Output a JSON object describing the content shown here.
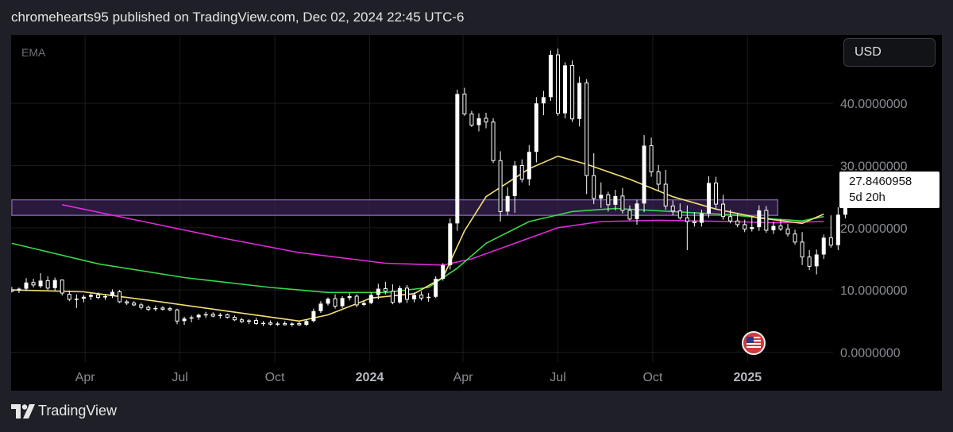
{
  "header": {
    "attribution": "chromehearts95 published on TradingView.com, Dec 02, 2024 22:45 UTC-6"
  },
  "toolbar": {
    "indicator_label": "EMA",
    "currency_label": "USD"
  },
  "price_label": {
    "price": "27.8460958",
    "countdown": "5d 20h"
  },
  "footer": {
    "brand": "TradingView"
  },
  "colors": {
    "background": "#000000",
    "frame": "#1f2027",
    "candle": "#ffffff",
    "ema_short": "#f5df78",
    "ema_mid": "#3ad84a",
    "ema_long": "#e22adc",
    "zone_fill": "#3a2456",
    "zone_stroke": "#7a5aa8",
    "grid": "#1a1b20",
    "axis_text": "#8a8c94"
  },
  "icons": {
    "flag": "us-flag-icon",
    "logo": "tradingview-logo-icon"
  },
  "chart_data": {
    "type": "candlestick",
    "interval": "weekly",
    "y_ticks": [
      0,
      10,
      20,
      30,
      40
    ],
    "y_tick_labels": [
      "0.0000000",
      "10.0000000",
      "20.0000000",
      "30.0000000",
      "40.0000000"
    ],
    "ylim": [
      -1.6,
      51.0
    ],
    "x_ticks": [
      "Apr",
      "Jul",
      "Oct",
      "2024",
      "Apr",
      "Jul",
      "Oct",
      "2025"
    ],
    "x_tick_index": [
      10.2,
      23.4,
      36.6,
      49.8,
      62.8,
      76.0,
      89.2,
      102.4
    ],
    "x_bold_ticks": [
      "2024",
      "2025"
    ],
    "xlim": [
      -0.1,
      114.3
    ],
    "zone": {
      "y_from": 22.0,
      "y_to": 24.5,
      "x_from": 0,
      "x_to": 106.6
    },
    "candles": [
      [
        10.0,
        10.5,
        9.6,
        9.9
      ],
      [
        9.9,
        10.4,
        9.5,
        10.2
      ],
      [
        10.2,
        11.9,
        9.8,
        11.2
      ],
      [
        11.2,
        11.8,
        10.4,
        10.8
      ],
      [
        10.6,
        12.7,
        10.3,
        11.5
      ],
      [
        11.5,
        12.2,
        10.0,
        10.3
      ],
      [
        10.3,
        12.0,
        9.9,
        11.6
      ],
      [
        11.6,
        11.7,
        9.1,
        9.5
      ],
      [
        9.3,
        9.9,
        8.2,
        8.5
      ],
      [
        8.5,
        9.3,
        7.1,
        8.6
      ],
      [
        8.6,
        9.2,
        8.0,
        8.9
      ],
      [
        8.9,
        9.5,
        8.4,
        9.2
      ],
      [
        9.2,
        9.6,
        8.5,
        8.8
      ],
      [
        8.8,
        9.3,
        8.4,
        9.0
      ],
      [
        9.0,
        10.1,
        8.7,
        9.7
      ],
      [
        9.7,
        10.0,
        7.9,
        8.1
      ],
      [
        8.1,
        8.4,
        7.6,
        7.9
      ],
      [
        7.9,
        8.2,
        7.4,
        7.6
      ],
      [
        7.6,
        7.9,
        6.9,
        7.2
      ],
      [
        7.2,
        7.5,
        6.6,
        6.9
      ],
      [
        6.9,
        7.5,
        6.6,
        7.1
      ],
      [
        7.1,
        7.4,
        6.7,
        7.0
      ],
      [
        7.0,
        7.3,
        6.6,
        6.8
      ],
      [
        6.8,
        7.0,
        4.5,
        5.0
      ],
      [
        5.0,
        5.7,
        4.4,
        5.4
      ],
      [
        5.4,
        5.9,
        4.8,
        5.6
      ],
      [
        5.6,
        6.2,
        5.2,
        6.0
      ],
      [
        6.0,
        6.5,
        5.5,
        6.1
      ],
      [
        6.1,
        6.4,
        5.6,
        5.8
      ],
      [
        5.8,
        6.3,
        5.4,
        6.0
      ],
      [
        6.0,
        6.2,
        5.4,
        5.6
      ],
      [
        5.6,
        5.9,
        5.0,
        5.2
      ],
      [
        5.2,
        5.5,
        4.7,
        4.9
      ],
      [
        4.9,
        5.3,
        4.5,
        5.1
      ],
      [
        5.1,
        5.5,
        4.4,
        4.6
      ],
      [
        4.6,
        5.0,
        4.2,
        4.7
      ],
      [
        4.7,
        5.1,
        4.3,
        4.5
      ],
      [
        4.5,
        4.9,
        4.2,
        4.6
      ],
      [
        4.6,
        5.0,
        4.3,
        4.4
      ],
      [
        4.4,
        4.8,
        4.1,
        4.6
      ],
      [
        4.6,
        5.0,
        4.2,
        4.4
      ],
      [
        4.4,
        5.2,
        4.2,
        5.0
      ],
      [
        5.0,
        7.0,
        4.8,
        6.6
      ],
      [
        6.6,
        8.2,
        6.3,
        7.8
      ],
      [
        7.8,
        8.8,
        7.5,
        8.6
      ],
      [
        8.6,
        9.3,
        7.0,
        7.4
      ],
      [
        7.4,
        9.0,
        7.1,
        8.7
      ],
      [
        8.7,
        9.5,
        8.3,
        9.0
      ],
      [
        9.0,
        9.3,
        7.2,
        7.6
      ],
      [
        7.6,
        8.2,
        7.4,
        7.9
      ],
      [
        7.9,
        9.6,
        7.7,
        9.2
      ],
      [
        9.2,
        11.0,
        8.5,
        10.2
      ],
      [
        10.2,
        11.3,
        9.3,
        9.8
      ],
      [
        9.8,
        10.9,
        7.7,
        8.0
      ],
      [
        8.0,
        10.7,
        7.8,
        10.3
      ],
      [
        10.3,
        10.8,
        7.9,
        8.5
      ],
      [
        8.5,
        9.6,
        8.0,
        9.2
      ],
      [
        9.2,
        9.8,
        8.3,
        8.7
      ],
      [
        8.7,
        9.5,
        8.1,
        8.9
      ],
      [
        8.9,
        12.2,
        8.7,
        11.8
      ],
      [
        11.8,
        14.3,
        11.5,
        14.0
      ],
      [
        14.0,
        21.5,
        13.3,
        20.7
      ],
      [
        20.7,
        42.2,
        19.5,
        41.5
      ],
      [
        41.5,
        42.5,
        38.0,
        38.3
      ],
      [
        38.3,
        38.8,
        36.2,
        36.5
      ],
      [
        36.5,
        38.4,
        35.5,
        37.6
      ],
      [
        37.6,
        38.5,
        36.0,
        37.0
      ],
      [
        37.0,
        37.6,
        30.4,
        30.8
      ],
      [
        30.8,
        32.3,
        21.0,
        22.6
      ],
      [
        22.6,
        26.5,
        22.0,
        25.1
      ],
      [
        25.1,
        30.7,
        22.4,
        30.0
      ],
      [
        30.0,
        31.0,
        27.3,
        27.8
      ],
      [
        27.8,
        33.3,
        26.8,
        32.2
      ],
      [
        32.2,
        41.0,
        30.5,
        40.0
      ],
      [
        40.0,
        42.0,
        38.1,
        41.0
      ],
      [
        41.0,
        48.5,
        40.4,
        47.8
      ],
      [
        47.8,
        48.8,
        38.0,
        38.4
      ],
      [
        38.4,
        46.6,
        37.6,
        46.1
      ],
      [
        46.1,
        46.9,
        37.0,
        37.5
      ],
      [
        37.5,
        44.3,
        36.3,
        43.3
      ],
      [
        43.3,
        43.9,
        25.4,
        28.4
      ],
      [
        28.4,
        32.0,
        23.8,
        24.7
      ],
      [
        24.7,
        27.3,
        23.2,
        25.3
      ],
      [
        25.3,
        25.8,
        22.6,
        23.7
      ],
      [
        23.7,
        26.1,
        22.8,
        25.1
      ],
      [
        25.1,
        26.4,
        22.3,
        22.8
      ],
      [
        22.8,
        23.6,
        21.2,
        21.4
      ],
      [
        21.4,
        24.5,
        20.5,
        23.9
      ],
      [
        23.9,
        34.9,
        22.5,
        33.2
      ],
      [
        33.2,
        34.5,
        28.2,
        29.0
      ],
      [
        29.0,
        30.1,
        26.0,
        27.0
      ],
      [
        27.0,
        29.3,
        22.9,
        23.5
      ],
      [
        23.5,
        24.4,
        22.0,
        22.7
      ],
      [
        22.7,
        23.9,
        21.3,
        21.6
      ],
      [
        21.6,
        23.6,
        16.4,
        21.0
      ],
      [
        21.0,
        22.5,
        20.2,
        20.8
      ],
      [
        20.8,
        22.9,
        20.2,
        22.3
      ],
      [
        22.3,
        28.3,
        21.6,
        27.2
      ],
      [
        27.2,
        28.2,
        23.1,
        23.8
      ],
      [
        23.8,
        25.3,
        21.3,
        21.8
      ],
      [
        21.8,
        22.9,
        20.7,
        21.1
      ],
      [
        21.1,
        22.4,
        20.1,
        20.5
      ],
      [
        20.5,
        21.3,
        19.3,
        19.8
      ],
      [
        19.8,
        21.7,
        19.4,
        20.1
      ],
      [
        20.1,
        23.6,
        19.5,
        22.8
      ],
      [
        22.8,
        23.5,
        19.2,
        19.6
      ],
      [
        19.6,
        21.0,
        19.0,
        20.3
      ],
      [
        20.3,
        21.4,
        19.5,
        19.8
      ],
      [
        19.8,
        20.6,
        18.6,
        19.0
      ],
      [
        19.0,
        19.7,
        17.3,
        17.7
      ],
      [
        17.7,
        19.3,
        14.0,
        15.3
      ],
      [
        15.3,
        16.4,
        13.2,
        13.8
      ],
      [
        13.8,
        16.5,
        12.5,
        15.7
      ],
      [
        15.7,
        18.9,
        15.0,
        18.4
      ],
      [
        18.4,
        22.0,
        16.8,
        17.2
      ],
      [
        17.2,
        23.3,
        16.4,
        22.1
      ],
      [
        22.1,
        26.3,
        21.5,
        25.1
      ],
      [
        25.6,
        28.3,
        25.1,
        27.85
      ]
    ],
    "ema_short": [
      [
        0,
        10.0
      ],
      [
        10,
        9.7
      ],
      [
        20,
        8.2
      ],
      [
        30,
        6.6
      ],
      [
        40,
        5.0
      ],
      [
        44,
        6.0
      ],
      [
        50,
        8.7
      ],
      [
        56,
        9.4
      ],
      [
        60,
        12.0
      ],
      [
        63,
        19.5
      ],
      [
        66,
        25.0
      ],
      [
        72,
        29.5
      ],
      [
        76,
        31.5
      ],
      [
        80,
        30.2
      ],
      [
        86,
        27.8
      ],
      [
        92,
        25.0
      ],
      [
        98,
        23.0
      ],
      [
        104,
        21.6
      ],
      [
        110,
        20.7
      ],
      [
        113,
        22.2
      ]
    ],
    "ema_mid": [
      [
        0,
        17.5
      ],
      [
        12,
        14.2
      ],
      [
        24,
        12.0
      ],
      [
        36,
        10.4
      ],
      [
        44,
        9.6
      ],
      [
        52,
        9.6
      ],
      [
        58,
        10.4
      ],
      [
        62,
        13.5
      ],
      [
        66,
        17.5
      ],
      [
        72,
        21.0
      ],
      [
        78,
        22.6
      ],
      [
        84,
        23.1
      ],
      [
        92,
        22.6
      ],
      [
        100,
        22.1
      ],
      [
        106,
        21.4
      ],
      [
        110,
        21.1
      ],
      [
        113,
        21.8
      ]
    ],
    "ema_long": [
      [
        7,
        23.7
      ],
      [
        20,
        20.6
      ],
      [
        30,
        18.2
      ],
      [
        40,
        16.0
      ],
      [
        52,
        14.3
      ],
      [
        60,
        14.0
      ],
      [
        64,
        15.0
      ],
      [
        70,
        17.5
      ],
      [
        76,
        20.0
      ],
      [
        82,
        21.0
      ],
      [
        90,
        21.2
      ],
      [
        100,
        21.0
      ],
      [
        106,
        20.8
      ],
      [
        113,
        21.0
      ]
    ]
  }
}
